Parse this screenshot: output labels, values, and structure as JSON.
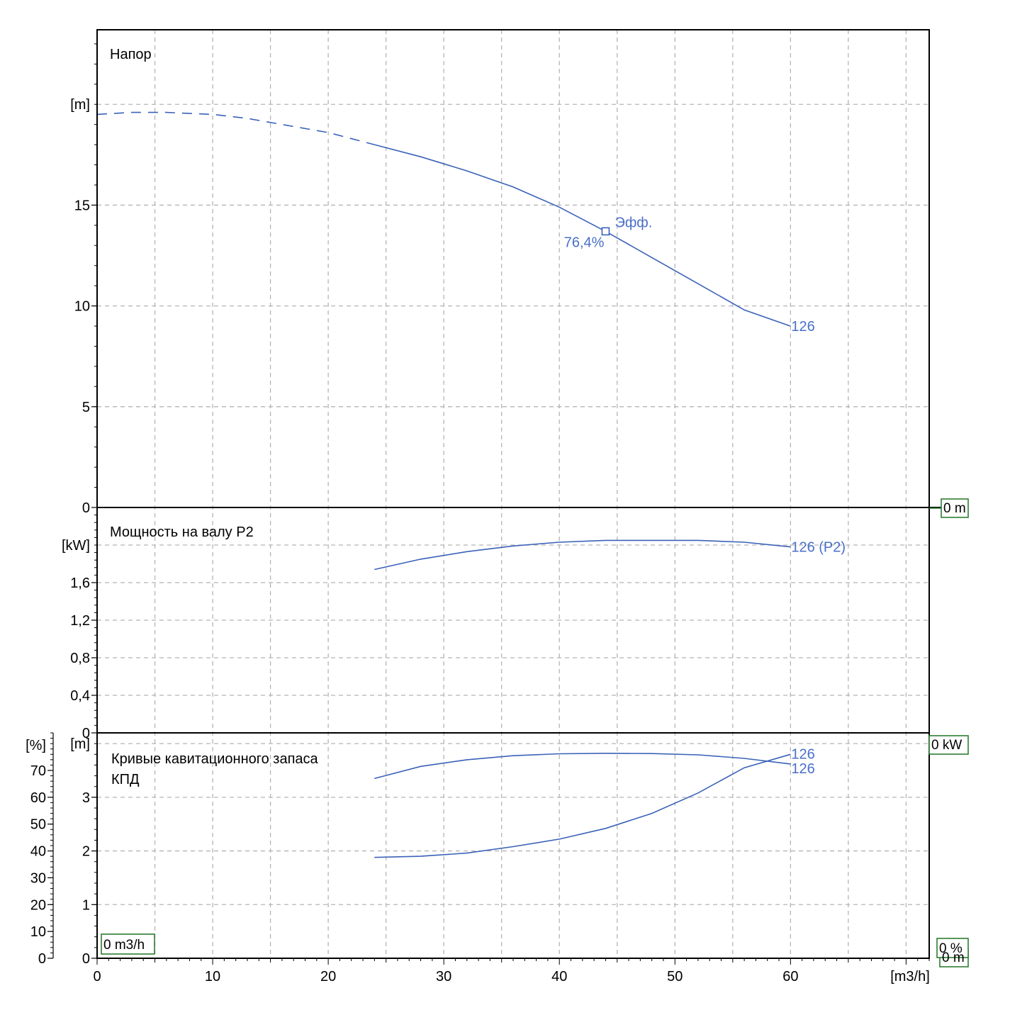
{
  "chart_data": {
    "type": "line",
    "x_axis": {
      "unit_label": "[m3/h]",
      "range": [
        0,
        72
      ],
      "ticks": [
        0,
        10,
        20,
        30,
        40,
        50,
        60
      ],
      "tick_labels": [
        "0",
        "10",
        "20",
        "30",
        "40",
        "50",
        "60"
      ]
    },
    "panels": [
      {
        "id": "head",
        "title": "Напор",
        "y_unit_label": "[m]",
        "y_range": [
          0,
          23.7
        ],
        "y_ticks": [
          0,
          5,
          10,
          15
        ],
        "y_tick_labels": [
          "0",
          "5",
          "10",
          "15"
        ],
        "grid": true,
        "corner_box": "0 m",
        "series": [
          {
            "name": "126",
            "dashed_part": {
              "x": [
                0,
                3,
                6,
                10,
                13,
                17,
                20,
                24
              ],
              "y": [
                19.5,
                19.6,
                19.6,
                19.5,
                19.3,
                18.9,
                18.6,
                18.0
              ]
            },
            "solid_part": {
              "x": [
                24,
                28,
                32,
                36,
                40,
                44,
                48,
                52,
                56,
                60
              ],
              "y": [
                18.0,
                17.4,
                16.7,
                15.9,
                14.9,
                13.7,
                12.4,
                11.1,
                9.8,
                9.0
              ]
            },
            "end_label": "126"
          }
        ],
        "annotations": [
          {
            "text": "Эфф.",
            "x": 44,
            "y": 13.7,
            "marker": "square"
          },
          {
            "text": "76,4%",
            "x": 44,
            "y": 13.7
          }
        ]
      },
      {
        "id": "power",
        "title": "Мощность на валу P2",
        "y_unit_label": "[kW]",
        "y_range": [
          0,
          2.4
        ],
        "y_ticks": [
          0,
          0.4,
          0.8,
          1.2,
          1.6
        ],
        "y_tick_labels": [
          "0",
          "0,4",
          "0,8",
          "1,2",
          "1,6"
        ],
        "grid": true,
        "corner_box": "0 kW",
        "series": [
          {
            "name": "126 (P2)",
            "x": [
              24,
              28,
              32,
              36,
              40,
              44,
              48,
              52,
              56,
              60
            ],
            "y": [
              1.74,
              1.85,
              1.93,
              1.99,
              2.03,
              2.05,
              2.05,
              2.05,
              2.03,
              1.98
            ],
            "end_label": "126 (P2)"
          }
        ]
      },
      {
        "id": "npsh_eff",
        "title_lines": [
          "Кривые кавитационного запаса",
          "КПД"
        ],
        "y_unit_label": "[m]",
        "y_range": [
          0,
          4.2
        ],
        "y_ticks": [
          0,
          1,
          2,
          3
        ],
        "y_tick_labels": [
          "0",
          "1",
          "2",
          "3"
        ],
        "y2_unit_label": "[%]",
        "y2_range": [
          0,
          84
        ],
        "y2_ticks": [
          0,
          10,
          20,
          30,
          40,
          50,
          60,
          70
        ],
        "y2_tick_labels": [
          "0",
          "10",
          "20",
          "30",
          "40",
          "50",
          "60",
          "70"
        ],
        "grid": true,
        "corner_boxes": [
          "0 m3/h",
          "0 %",
          "0 m"
        ],
        "series": [
          {
            "name": "126",
            "kind": "efficiency",
            "x": [
              24,
              28,
              32,
              36,
              40,
              44,
              48,
              52,
              56,
              60
            ],
            "y_percent": [
              67,
              71.5,
              74,
              75.5,
              76.2,
              76.4,
              76.3,
              75.8,
              74.5,
              72.4
            ],
            "end_label": "126"
          },
          {
            "name": "126",
            "kind": "npsh",
            "x": [
              24,
              28,
              32,
              36,
              40,
              44,
              48,
              52,
              56,
              60
            ],
            "y": [
              1.88,
              1.9,
              1.96,
              2.08,
              2.22,
              2.42,
              2.7,
              3.08,
              3.55,
              3.8
            ],
            "end_label": "126"
          }
        ]
      }
    ]
  }
}
